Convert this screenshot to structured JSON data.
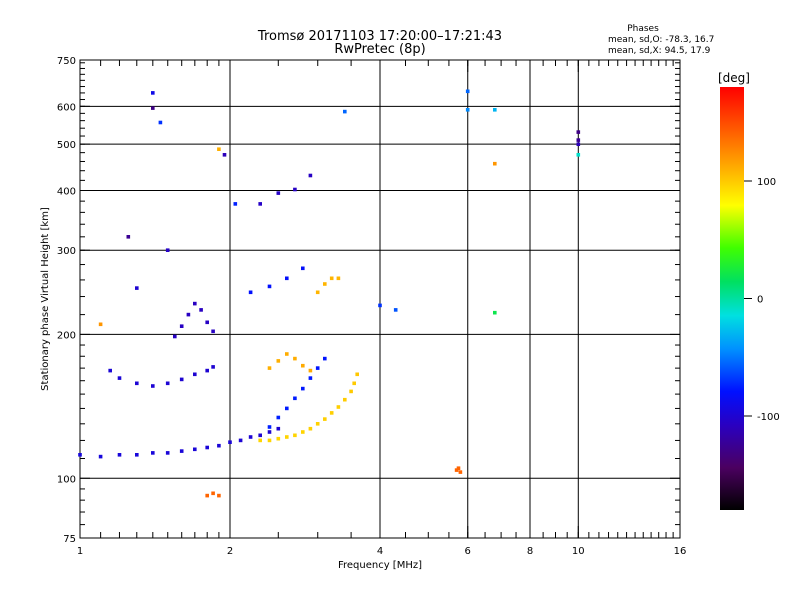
{
  "chart_data": {
    "type": "scatter",
    "title": "Tromsø 20171103 17:20:00–17:21:43",
    "subtitle": "RwPretec (8p)",
    "xlabel": "Frequency [MHz]",
    "ylabel": "Stationary phase Virtual Height [km]",
    "x_scale": "log",
    "y_scale": "log",
    "xlim": [
      1,
      16
    ],
    "ylim": [
      75,
      750
    ],
    "x_ticks": [
      1,
      2,
      4,
      6,
      8,
      10,
      16
    ],
    "x_tick_labels": [
      "1",
      "2",
      "4",
      "6",
      "8",
      "10",
      "16"
    ],
    "y_ticks": [
      75,
      100,
      200,
      300,
      400,
      500,
      600,
      750
    ],
    "y_tick_labels": [
      "75",
      "100",
      "200",
      "300",
      "400",
      "500",
      "600",
      "750"
    ],
    "grid": true,
    "stats": {
      "heading": "Phases",
      "o_line": "mean, sd,O: -78.3, 16.7",
      "x_line": "mean, sd,X:  94.5, 17.9"
    },
    "colorbar": {
      "label": "[deg]",
      "min": -180,
      "max": 180,
      "ticks": [
        100,
        0,
        -100
      ],
      "tick_labels": [
        "100",
        "0",
        "-100"
      ],
      "position": "right"
    },
    "traces": [
      {
        "name": "",
        "x": [
          1.0,
          1.1,
          1.2,
          1.3,
          1.4,
          1.5,
          1.6,
          1.7,
          1.8,
          1.9,
          2.0,
          2.1,
          2.2,
          2.3,
          2.4,
          2.5
        ],
        "y": [
          112,
          111,
          112,
          112,
          113,
          113,
          114,
          115,
          116,
          117,
          119,
          120,
          122,
          123,
          125,
          127
        ],
        "phase": [
          -95,
          -95,
          -96,
          -96,
          -96,
          -97,
          -97,
          -97,
          -97,
          -98,
          -98,
          -99,
          -99,
          -100,
          -100,
          -100
        ]
      },
      {
        "name": "",
        "x": [
          2.3,
          2.4,
          2.5,
          2.6,
          2.7,
          2.8,
          2.9,
          3.0,
          3.1,
          3.2,
          3.3,
          3.4,
          3.5,
          3.55,
          3.6
        ],
        "y": [
          120,
          120,
          121,
          122,
          123,
          125,
          127,
          130,
          133,
          137,
          141,
          146,
          152,
          158,
          165
        ],
        "phase": [
          95,
          95,
          95,
          96,
          96,
          96,
          97,
          97,
          98,
          98,
          98,
          99,
          100,
          100,
          101
        ]
      },
      {
        "name": "",
        "x": [
          2.4,
          2.5,
          2.6,
          2.7,
          2.8,
          2.9,
          3.0,
          3.1
        ],
        "y": [
          128,
          134,
          140,
          147,
          154,
          162,
          170,
          178
        ],
        "phase": [
          -75,
          -75,
          -76,
          -76,
          -77,
          -77,
          -78,
          -78
        ]
      },
      {
        "name": "",
        "x": [
          1.15,
          1.2,
          1.3,
          1.4,
          1.5,
          1.6,
          1.7,
          1.8,
          1.85
        ],
        "y": [
          168,
          162,
          158,
          156,
          158,
          161,
          165,
          168,
          171
        ],
        "phase": [
          -98,
          -98,
          -99,
          -99,
          -99,
          -100,
          -100,
          -100,
          -100
        ]
      },
      {
        "name": "",
        "x": [
          1.55,
          1.6,
          1.65,
          1.7,
          1.75,
          1.8,
          1.85
        ],
        "y": [
          198,
          208,
          220,
          232,
          225,
          212,
          203
        ],
        "phase": [
          -106,
          -106,
          -107,
          -107,
          -107,
          -106,
          -106
        ]
      },
      {
        "name": "",
        "x": [
          2.4,
          2.5,
          2.6,
          2.7,
          2.8,
          2.9
        ],
        "y": [
          170,
          176,
          182,
          178,
          172,
          168
        ],
        "phase": [
          110,
          110,
          111,
          111,
          112,
          112
        ]
      },
      {
        "name": "",
        "x": [
          2.3,
          2.5,
          2.7,
          2.9
        ],
        "y": [
          375,
          395,
          402,
          430
        ],
        "phase": [
          -105,
          -105,
          -106,
          -106
        ]
      },
      {
        "name": "",
        "x": [
          2.2,
          2.4,
          2.6,
          2.8
        ],
        "y": [
          245,
          252,
          262,
          275
        ],
        "phase": [
          -80,
          -80,
          -81,
          -81
        ]
      },
      {
        "name": "",
        "x": [
          3.0,
          3.1,
          3.2,
          3.3
        ],
        "y": [
          245,
          255,
          262,
          262
        ],
        "phase": [
          108,
          108,
          108,
          108
        ]
      },
      {
        "name": "",
        "x": [
          5.7,
          5.75,
          5.8
        ],
        "y": [
          104,
          105,
          103
        ],
        "phase": [
          140,
          140,
          140
        ]
      },
      {
        "name": "",
        "x": [
          1.8,
          1.85,
          1.9
        ],
        "y": [
          92,
          93,
          92
        ],
        "phase": [
          140,
          140,
          140
        ]
      },
      {
        "name": "",
        "x": [
          1.4,
          1.4,
          1.45,
          1.25,
          1.5,
          1.3,
          1.1
        ],
        "y": [
          640,
          595,
          555,
          320,
          300,
          250,
          210
        ],
        "phase": [
          -90,
          -130,
          -70,
          -125,
          -105,
          -100,
          120
        ]
      },
      {
        "name": "",
        "x": [
          1.9,
          1.95,
          2.05,
          3.4,
          4.0,
          4.3,
          6.0,
          6.0,
          6.8,
          6.8,
          6.8,
          10.0,
          10.0,
          10.0,
          10.0
        ],
        "y": [
          488,
          475,
          375,
          585,
          230,
          225,
          645,
          590,
          590,
          222,
          455,
          530,
          510,
          500,
          475
        ],
        "phase": [
          110,
          -110,
          -75,
          -55,
          -70,
          -60,
          -55,
          -45,
          -30,
          20,
          120,
          -130,
          -125,
          -110,
          -10
        ]
      }
    ]
  }
}
